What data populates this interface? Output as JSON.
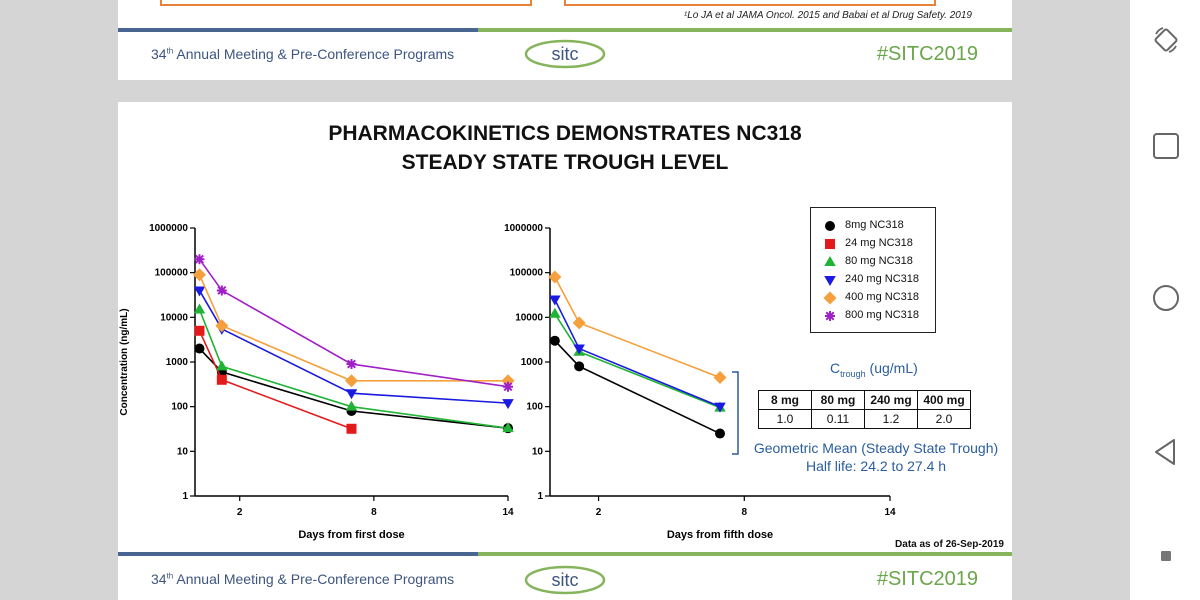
{
  "header": {
    "footnote": "¹Lo JA et al JAMA Oncol. 2015 and Babai et al Drug Safety. 2019",
    "meeting_ordinal": "34",
    "meeting_ordinal_suffix": "th",
    "meeting_rest": " Annual Meeting & Pre-Conference Programs",
    "logo_text": "sitc",
    "hashtag": "#SITC2019"
  },
  "footer": {
    "meeting_ordinal": "34",
    "meeting_ordinal_suffix": "th",
    "meeting_rest": " Annual Meeting & Pre-Conference Programs",
    "logo_text": "sitc",
    "hashtag": "#SITC2019"
  },
  "slide": {
    "title_line1": "PHARMACOKINETICS DEMONSTRATES NC318",
    "title_line2": "STEADY STATE TROUGH LEVEL",
    "ctrough_main": "C",
    "ctrough_sub": "trough",
    "ctrough_unit": " (ug/mL)",
    "table_headers": [
      "8 mg",
      "80 mg",
      "240 mg",
      "400 mg"
    ],
    "table_values": [
      "1.0",
      "0.11",
      "1.2",
      "2.0"
    ],
    "geo_mean": "Geometric Mean (Steady State Trough)",
    "half_life": "Half life: 24.2 to 27.4 h",
    "data_as_of": "Data as of 26-Sep-2019"
  },
  "colors": {
    "blue_band": "#4a6591",
    "green_band": "#86b45c",
    "accent_blue": "#2a5d9f",
    "hashtag_green": "#6aa64a"
  },
  "chart_data": [
    {
      "type": "line",
      "title": "",
      "xlabel": "Days from first dose",
      "ylabel": "Concentration (ng/mL)",
      "yscale": "log",
      "ylim": [
        1,
        1000000
      ],
      "xlim": [
        0,
        14
      ],
      "xticks": [
        "2",
        "8",
        "14"
      ],
      "yticks": [
        "1",
        "10",
        "100",
        "1000",
        "10000",
        "100000",
        "1000000"
      ],
      "legend": [
        "8mg NC318",
        "24 mg NC318",
        "80 mg NC318",
        "240 mg NC318",
        "400 mg NC318",
        "800 mg NC318"
      ],
      "series": [
        {
          "name": "8mg NC318",
          "color": "#000000",
          "marker": "circle",
          "x": [
            0.2,
            1.2,
            7,
            14
          ],
          "y": [
            2000,
            600,
            80,
            33
          ]
        },
        {
          "name": "24 mg NC318",
          "color": "#e31a1c",
          "marker": "square",
          "x": [
            0.2,
            1.2,
            7
          ],
          "y": [
            5000,
            400,
            32
          ]
        },
        {
          "name": "80 mg NC318",
          "color": "#21b335",
          "marker": "triangle-up",
          "x": [
            0.2,
            1.2,
            7,
            14
          ],
          "y": [
            15000,
            800,
            100,
            33
          ]
        },
        {
          "name": "240 mg NC318",
          "color": "#1a1ae0",
          "marker": "triangle-down",
          "x": [
            0.2,
            1.2,
            7,
            14
          ],
          "y": [
            40000,
            5500,
            200,
            120
          ]
        },
        {
          "name": "400 mg NC318",
          "color": "#f5a03c",
          "marker": "diamond",
          "x": [
            0.2,
            1.2,
            7,
            14
          ],
          "y": [
            90000,
            6500,
            380,
            380
          ]
        },
        {
          "name": "800 mg NC318",
          "color": "#a020c8",
          "marker": "star",
          "x": [
            0.2,
            1.2,
            7,
            14
          ],
          "y": [
            200000,
            40000,
            900,
            280
          ]
        }
      ]
    },
    {
      "type": "line",
      "title": "",
      "xlabel": "Days from fifth dose",
      "ylabel": "",
      "yscale": "log",
      "ylim": [
        1,
        1000000
      ],
      "xlim": [
        0,
        14
      ],
      "xticks": [
        "2",
        "8",
        "14"
      ],
      "yticks": [
        "1",
        "10",
        "100",
        "1000",
        "10000",
        "100000",
        "1000000"
      ],
      "series": [
        {
          "name": "8mg NC318",
          "color": "#000000",
          "marker": "circle",
          "x": [
            0.2,
            1.2,
            7
          ],
          "y": [
            3000,
            800,
            25
          ]
        },
        {
          "name": "80 mg NC318",
          "color": "#21b335",
          "marker": "triangle-up",
          "x": [
            0.2,
            1.2,
            7
          ],
          "y": [
            12000,
            1700,
            95
          ]
        },
        {
          "name": "240 mg NC318",
          "color": "#1a1ae0",
          "marker": "triangle-down",
          "x": [
            0.2,
            1.2,
            7
          ],
          "y": [
            25000,
            2000,
            100
          ]
        },
        {
          "name": "400 mg NC318",
          "color": "#f5a03c",
          "marker": "diamond",
          "x": [
            0.2,
            1.2,
            7
          ],
          "y": [
            80000,
            7500,
            450
          ]
        }
      ]
    }
  ],
  "sidebar": {
    "buttons": [
      "rotate-icon",
      "square-icon",
      "circle-icon",
      "back-triangle-icon",
      "small-square-icon"
    ]
  }
}
